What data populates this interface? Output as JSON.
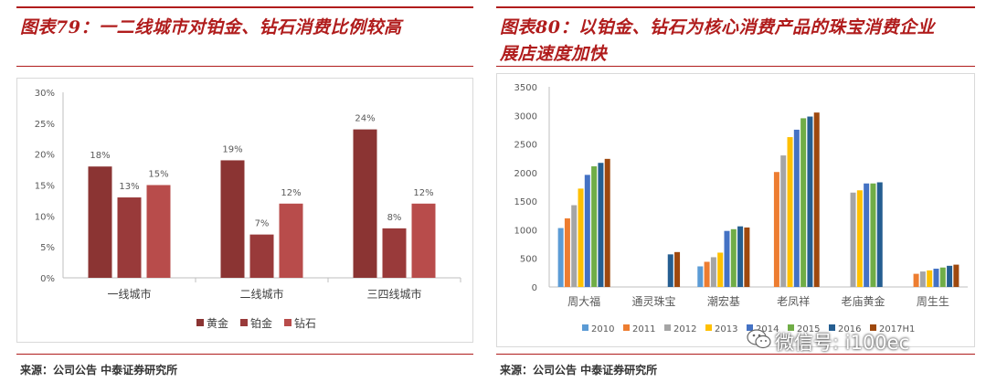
{
  "left": {
    "title": "图表79：一二线城市对铂金、钻石消费比例较高",
    "source": "来源：公司公告 中泰证券研究所"
  },
  "right": {
    "title_line1": "图表80：以铂金、钻石为核心消费产品的珠宝消费企业",
    "title_line2": "展店速度加快",
    "source": "来源：公司公告 中泰证券研究所"
  },
  "watermark": {
    "text": "微信号: i100ec",
    "icon": "wechat-icon"
  },
  "chart_data": [
    {
      "type": "bar",
      "categories": [
        "一线城市",
        "二线城市",
        "三四线城市"
      ],
      "series": [
        {
          "name": "黄金",
          "color": "#8b3433",
          "values": [
            18,
            19,
            24
          ],
          "labels": [
            "18%",
            "19%",
            "24%"
          ]
        },
        {
          "name": "铂金",
          "color": "#993a3a",
          "values": [
            13,
            7,
            8
          ],
          "labels": [
            "13%",
            "7%",
            "8%"
          ]
        },
        {
          "name": "钻石",
          "color": "#b84c4b",
          "values": [
            15,
            12,
            12
          ],
          "labels": [
            "15%",
            "12%",
            "12%"
          ]
        }
      ],
      "yticks": [
        "0%",
        "5%",
        "10%",
        "15%",
        "20%",
        "25%",
        "30%"
      ],
      "ylim": [
        0,
        30
      ],
      "legend": "bottom",
      "grid": false
    },
    {
      "type": "bar",
      "categories": [
        "周大福",
        "通灵珠宝",
        "潮宏基",
        "老凤祥",
        "老庙黄金",
        "周生生"
      ],
      "series": [
        {
          "name": "2010",
          "color": "#5b9bd5",
          "values": [
            1030,
            null,
            360,
            null,
            null,
            null
          ]
        },
        {
          "name": "2011",
          "color": "#ed7d31",
          "values": [
            1200,
            null,
            440,
            2010,
            null,
            230
          ]
        },
        {
          "name": "2012",
          "color": "#a5a5a5",
          "values": [
            1430,
            null,
            520,
            2300,
            1650,
            270
          ]
        },
        {
          "name": "2013",
          "color": "#ffc000",
          "values": [
            1720,
            null,
            600,
            2620,
            1690,
            290
          ]
        },
        {
          "name": "2014",
          "color": "#4472c4",
          "values": [
            1960,
            null,
            980,
            2750,
            1810,
            320
          ]
        },
        {
          "name": "2015",
          "color": "#70ad47",
          "values": [
            2110,
            null,
            1010,
            2950,
            1810,
            340
          ]
        },
        {
          "name": "2016",
          "color": "#255e91",
          "values": [
            2170,
            570,
            1060,
            2980,
            1830,
            370
          ]
        },
        {
          "name": "2017H1",
          "color": "#9e480e",
          "values": [
            2240,
            610,
            1040,
            3050,
            null,
            390
          ]
        }
      ],
      "yticks": [
        "0",
        "500",
        "1000",
        "1500",
        "2000",
        "2500",
        "3000",
        "3500"
      ],
      "ylim": [
        0,
        3500
      ],
      "legend": "bottom",
      "grid": false
    }
  ]
}
